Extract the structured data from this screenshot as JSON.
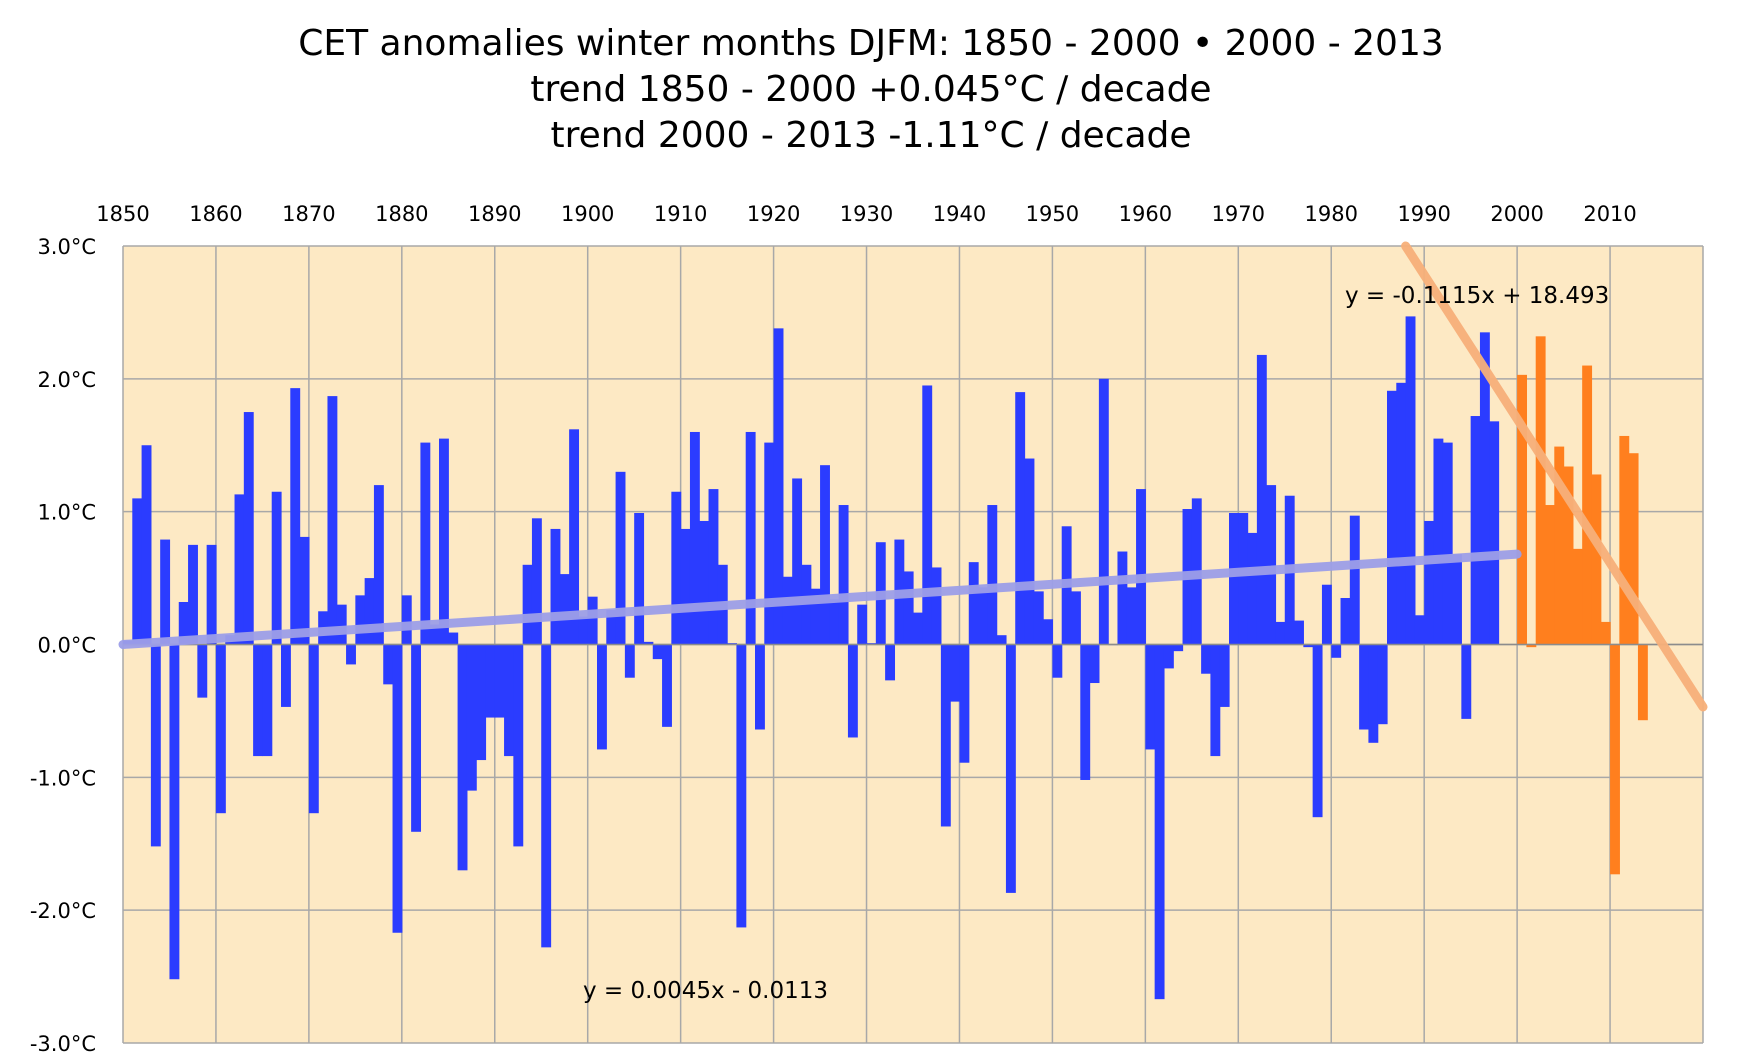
{
  "chart_data": {
    "type": "bar",
    "title_lines": [
      "CET anomalies winter months DJFM:  1850 - 2000 • 2000 - 2013",
      "trend 1850 - 2000 +0.045°C / decade",
      "trend 2000 - 2013 -1.11°C / decade"
    ],
    "x_tick_labels": [
      "1850",
      "1860",
      "1870",
      "1880",
      "1890",
      "1900",
      "1910",
      "1920",
      "1930",
      "1940",
      "1950",
      "1960",
      "1970",
      "1980",
      "1990",
      "2000",
      "2010"
    ],
    "y_tick_labels": [
      "3.0°C",
      "2.0°C",
      "1.0°C",
      "0.0°C",
      "-1.0°C",
      "-2.0°C",
      "-3.0°C"
    ],
    "xlim": [
      1850,
      2020
    ],
    "ylim": [
      -3,
      3
    ],
    "grid": true,
    "colors": {
      "background": "#fde9c4",
      "grid": "#a8a8a8",
      "series_1850_2000": "#2b3cff",
      "series_2000_2013": "#ff7f1e",
      "trend_1850_2000": "#9d9fe8",
      "trend_2000_2013": "#f7b07a"
    },
    "series": [
      {
        "start_year": 1850,
        "color": "#2b3cff",
        "values": [
          0.03,
          1.1,
          1.5,
          -1.52,
          0.79,
          -2.52,
          0.32,
          0.75,
          -0.4,
          0.75,
          -1.27,
          0.07,
          1.13,
          1.75,
          -0.84,
          -0.84,
          1.15,
          -0.47,
          1.93,
          0.81,
          -1.27,
          0.25,
          1.87,
          0.3,
          -0.15,
          0.37,
          0.5,
          1.2,
          -0.3,
          -2.17,
          0.37,
          -1.41,
          1.52,
          0.15,
          1.55,
          0.09,
          -1.7,
          -1.1,
          -0.87,
          -0.55,
          -0.55,
          -0.84,
          -1.52,
          0.6,
          0.95,
          -2.28,
          0.87,
          0.53,
          1.62,
          0.21,
          0.36,
          -0.79,
          0.26,
          1.3,
          -0.25,
          0.99,
          0.02,
          -0.11,
          -0.62,
          1.15,
          0.87,
          1.6,
          0.93,
          1.17,
          0.6,
          0.01,
          -2.13,
          1.6,
          -0.64,
          1.52,
          2.38,
          0.51,
          1.25,
          0.6,
          0.42,
          1.35,
          0.34,
          1.05,
          -0.7,
          0.3,
          0.01,
          0.77,
          -0.27,
          0.79,
          0.55,
          0.24,
          1.95,
          0.58,
          -1.37,
          -0.43,
          -0.89,
          0.62,
          0.43,
          1.05,
          0.07,
          -1.87,
          1.9,
          1.4,
          0.4,
          0.19,
          -0.25,
          0.89,
          0.4,
          -1.02,
          -0.29,
          2.0,
          0.0,
          0.7,
          0.43,
          1.17,
          -0.79,
          -2.67,
          -0.18,
          -0.05,
          1.02,
          1.1,
          -0.22,
          -0.84,
          -0.47,
          0.99,
          0.99,
          0.84,
          2.18,
          1.2,
          0.17,
          1.12,
          0.18,
          -0.02,
          -1.3,
          0.45,
          -0.1,
          0.35,
          0.97,
          -0.64,
          -0.74,
          -0.6,
          1.91,
          1.97,
          2.47,
          0.22,
          0.93,
          1.55,
          1.52,
          0.68,
          -0.56,
          1.72,
          2.35,
          1.68
        ]
      },
      {
        "start_year": 2000,
        "color": "#ff7f1e",
        "values": [
          2.03,
          -0.02,
          2.32,
          1.05,
          1.49,
          1.34,
          0.72,
          2.1,
          1.28,
          0.17,
          -1.73,
          1.57,
          1.44,
          -0.57
        ]
      }
    ],
    "trendlines": [
      {
        "label": "y = 0.0045x - 0.0113",
        "x_range": [
          1850,
          2000
        ],
        "y_range": [
          0.0,
          0.68
        ],
        "color": "#9d9fe8"
      },
      {
        "label": "y = -0.1115x + 18.493",
        "x_range": [
          1988,
          2020
        ],
        "y_range": [
          3.0,
          -0.47
        ],
        "color": "#f7b07a"
      }
    ]
  }
}
